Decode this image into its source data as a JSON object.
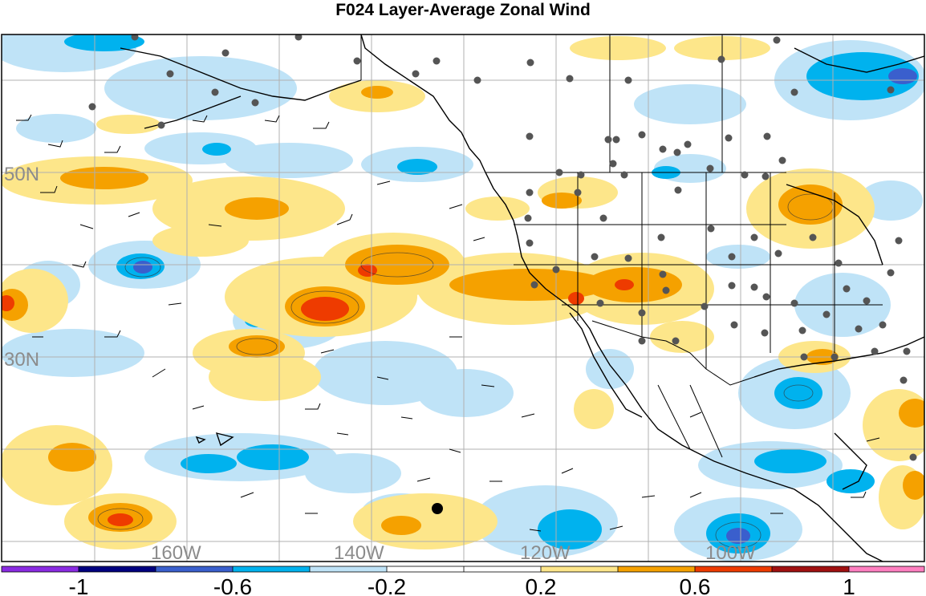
{
  "title": "F024 Layer-Average Zonal Wind",
  "lat_labels": [
    "50N",
    "30N"
  ],
  "lon_labels": [
    "160W",
    "140W",
    "120W",
    "100W"
  ],
  "colorbar": {
    "colors": [
      "#8a2be2",
      "#00007f",
      "#3a5fcd",
      "#00b2ee",
      "#bfe3f7",
      "#ffffff",
      "#ffffff",
      "#fde68a",
      "#f5a100",
      "#ee3b00",
      "#a01010",
      "#ff7fc0"
    ],
    "labels": [
      "-1",
      "-0.6",
      "-0.2",
      "0.2",
      "0.6",
      "1"
    ]
  },
  "colors": {
    "land_outline": "#000000",
    "station": "#555555",
    "grid": "#b0b0b0"
  }
}
